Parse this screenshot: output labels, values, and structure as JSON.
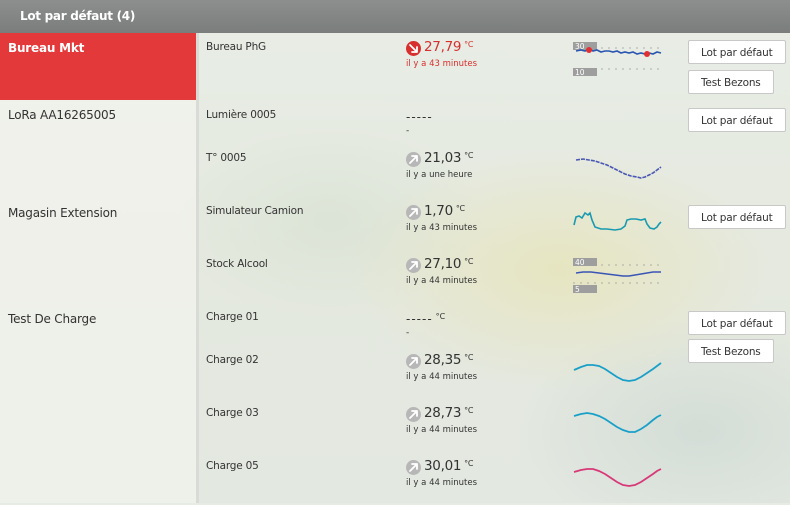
{
  "header": {
    "title": "Lot par défaut (4)"
  },
  "groups": [
    {
      "name": "Bureau Mkt",
      "active": true
    },
    {
      "name": "LoRa AA16265005"
    },
    {
      "name": "Magasin Extension"
    },
    {
      "name": "Test De Charge"
    }
  ],
  "devices": [
    {
      "name": "Bureau PhG",
      "value": "27,79",
      "unit": "°C",
      "timestamp": "il y a 43 minutes",
      "status": "alert",
      "trend": "down",
      "spark": {
        "color": "#2a55b0",
        "ymax_label": "30",
        "ymin_label": "10",
        "markers": [
          "#e03030"
        ]
      },
      "buttons": [
        "Lot par défaut",
        "Test Bezons"
      ]
    },
    {
      "name": "Lumière 0005",
      "value": "-----",
      "unit": "",
      "timestamp": "-",
      "buttons": [
        "Lot par défaut"
      ]
    },
    {
      "name": "T° 0005",
      "value": "21,03",
      "unit": "°C",
      "timestamp": "il y a une heure",
      "trend": "up",
      "spark": {
        "color": "#4a58b5"
      }
    },
    {
      "name": "Simulateur Camion",
      "value": "1,70",
      "unit": "°C",
      "timestamp": "il y a 43 minutes",
      "trend": "up",
      "spark": {
        "color": "#1a9ab0"
      },
      "buttons": [
        "Lot par défaut"
      ]
    },
    {
      "name": "Stock Alcool",
      "value": "27,10",
      "unit": "°C",
      "timestamp": "il y a 44 minutes",
      "trend": "up",
      "spark": {
        "color": "#3a55b5",
        "ymax_label": "40",
        "ymin_label": "5"
      }
    },
    {
      "name": "Charge 01",
      "value": "-----",
      "unit": "°C",
      "timestamp": "-",
      "buttons": [
        "Lot par défaut",
        "Test Bezons"
      ]
    },
    {
      "name": "Charge 02",
      "value": "28,35",
      "unit": "°C",
      "timestamp": "il y a 44 minutes",
      "trend": "up",
      "spark": {
        "color": "#1aa0c8"
      }
    },
    {
      "name": "Charge 03",
      "value": "28,73",
      "unit": "°C",
      "timestamp": "il y a 44 minutes",
      "trend": "up",
      "spark": {
        "color": "#1aa0c8"
      }
    },
    {
      "name": "Charge 05",
      "value": "30,01",
      "unit": "°C",
      "timestamp": "il y a 44 minutes",
      "trend": "up",
      "spark": {
        "color": "#d83878"
      }
    }
  ]
}
